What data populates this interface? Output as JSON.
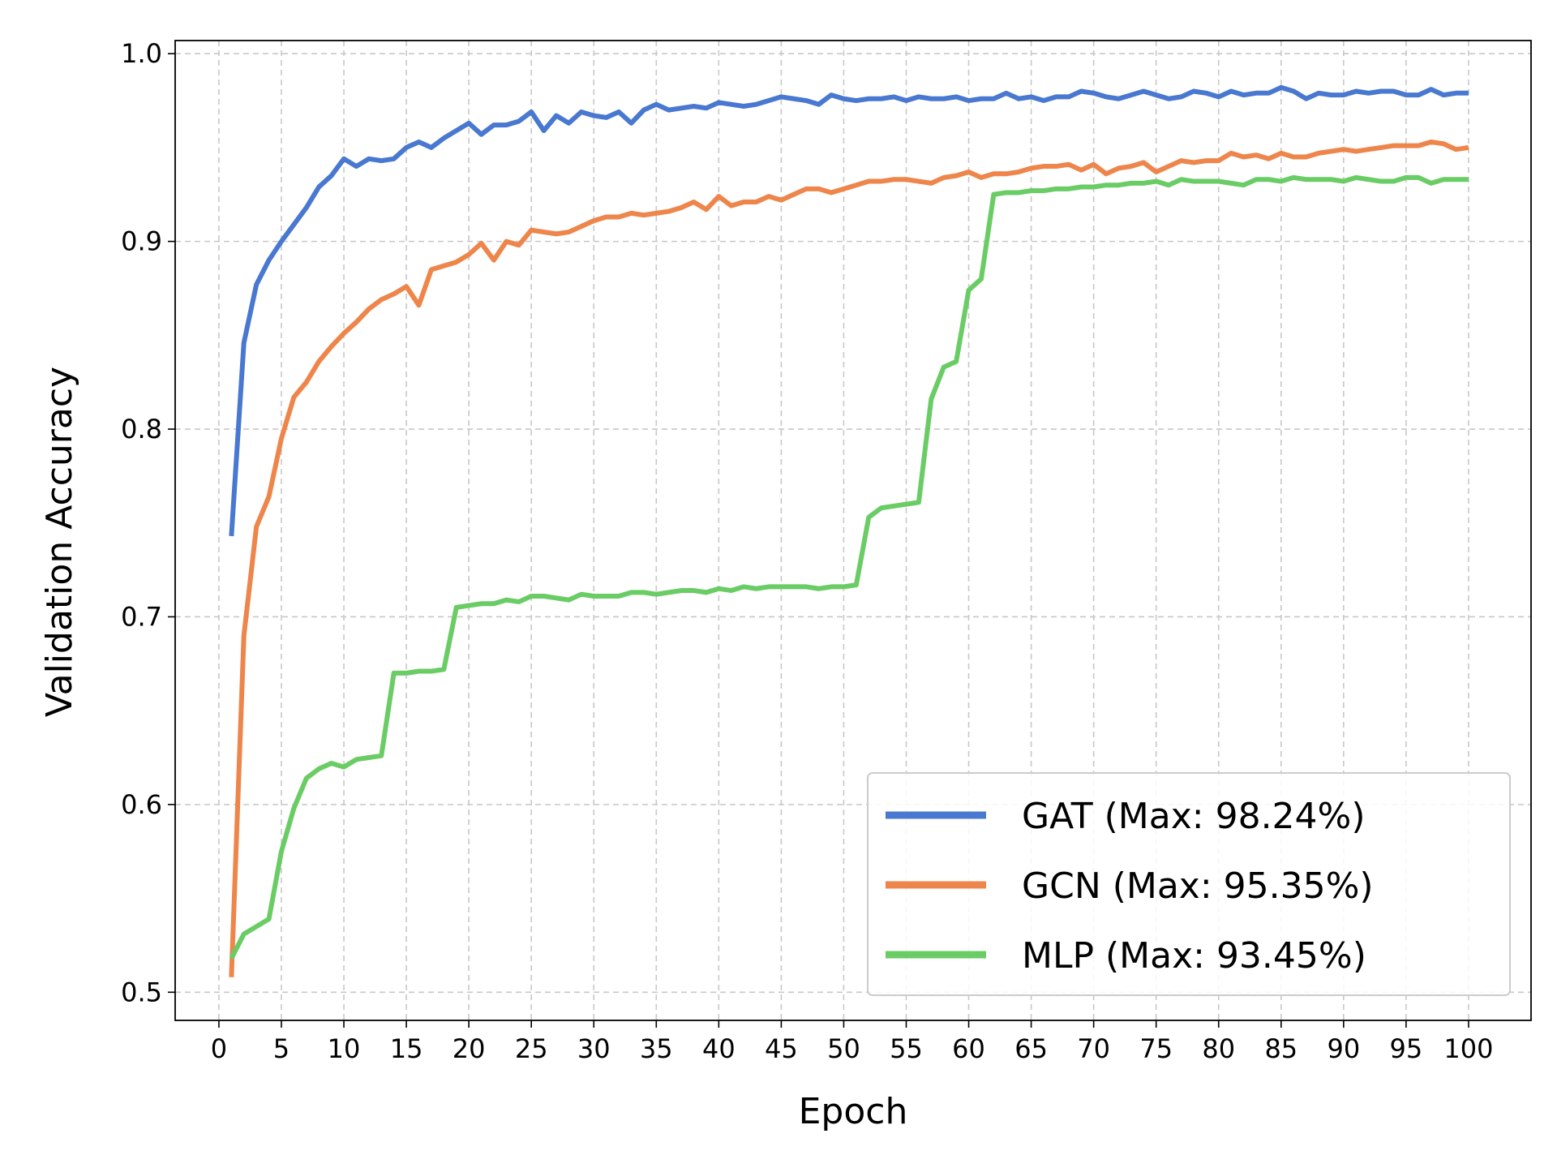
{
  "chart_data": {
    "type": "line",
    "title": "",
    "xlabel": "Epoch",
    "ylabel": "Validation Accuracy",
    "xlim": [
      -3.5,
      105
    ],
    "ylim": [
      0.485,
      1.007
    ],
    "x_ticks": [
      0,
      5,
      10,
      15,
      20,
      25,
      30,
      35,
      40,
      45,
      50,
      55,
      60,
      65,
      70,
      75,
      80,
      85,
      90,
      95,
      100
    ],
    "y_ticks": [
      0.5,
      0.6,
      0.7,
      0.8,
      0.9,
      1.0
    ],
    "y_tick_labels": [
      "0.5",
      "0.6",
      "0.7",
      "0.8",
      "0.9",
      "1.0"
    ],
    "grid": true,
    "legend_position": "lower-right",
    "x": [
      1,
      2,
      3,
      4,
      5,
      6,
      7,
      8,
      9,
      10,
      11,
      12,
      13,
      14,
      15,
      16,
      17,
      18,
      19,
      20,
      21,
      22,
      23,
      24,
      25,
      26,
      27,
      28,
      29,
      30,
      31,
      32,
      33,
      34,
      35,
      36,
      37,
      38,
      39,
      40,
      41,
      42,
      43,
      44,
      45,
      46,
      47,
      48,
      49,
      50,
      51,
      52,
      53,
      54,
      55,
      56,
      57,
      58,
      59,
      60,
      61,
      62,
      63,
      64,
      65,
      66,
      67,
      68,
      69,
      70,
      71,
      72,
      73,
      74,
      75,
      76,
      77,
      78,
      79,
      80,
      81,
      82,
      83,
      84,
      85,
      86,
      87,
      88,
      89,
      90,
      91,
      92,
      93,
      94,
      95,
      96,
      97,
      98,
      99,
      100
    ],
    "series": [
      {
        "name": "GAT (Max: 98.24%)",
        "color": "#4878d0",
        "values": [
          0.743,
          0.846,
          0.877,
          0.89,
          0.9,
          0.909,
          0.918,
          0.929,
          0.935,
          0.944,
          0.94,
          0.944,
          0.943,
          0.944,
          0.95,
          0.953,
          0.95,
          0.955,
          0.959,
          0.963,
          0.957,
          0.962,
          0.962,
          0.964,
          0.969,
          0.959,
          0.967,
          0.963,
          0.969,
          0.967,
          0.966,
          0.969,
          0.963,
          0.97,
          0.973,
          0.97,
          0.971,
          0.972,
          0.971,
          0.974,
          0.973,
          0.972,
          0.973,
          0.975,
          0.977,
          0.976,
          0.975,
          0.973,
          0.978,
          0.976,
          0.975,
          0.976,
          0.976,
          0.977,
          0.975,
          0.977,
          0.976,
          0.976,
          0.977,
          0.975,
          0.976,
          0.976,
          0.979,
          0.976,
          0.977,
          0.975,
          0.977,
          0.977,
          0.98,
          0.979,
          0.977,
          0.976,
          0.978,
          0.98,
          0.978,
          0.976,
          0.977,
          0.98,
          0.979,
          0.977,
          0.98,
          0.978,
          0.979,
          0.979,
          0.982,
          0.98,
          0.976,
          0.979,
          0.978,
          0.978,
          0.98,
          0.979,
          0.98,
          0.98,
          0.978,
          0.978,
          0.981,
          0.978,
          0.979,
          0.979
        ]
      },
      {
        "name": "GCN (Max: 95.35%)",
        "color": "#ee854a",
        "values": [
          0.508,
          0.69,
          0.748,
          0.764,
          0.795,
          0.817,
          0.825,
          0.836,
          0.844,
          0.851,
          0.857,
          0.864,
          0.869,
          0.872,
          0.876,
          0.866,
          0.885,
          0.887,
          0.889,
          0.893,
          0.899,
          0.89,
          0.9,
          0.898,
          0.906,
          0.905,
          0.904,
          0.905,
          0.908,
          0.911,
          0.913,
          0.913,
          0.915,
          0.914,
          0.915,
          0.916,
          0.918,
          0.921,
          0.917,
          0.924,
          0.919,
          0.921,
          0.921,
          0.924,
          0.922,
          0.925,
          0.928,
          0.928,
          0.926,
          0.928,
          0.93,
          0.932,
          0.932,
          0.933,
          0.933,
          0.932,
          0.931,
          0.934,
          0.935,
          0.937,
          0.934,
          0.936,
          0.936,
          0.937,
          0.939,
          0.94,
          0.94,
          0.941,
          0.938,
          0.941,
          0.936,
          0.939,
          0.94,
          0.942,
          0.937,
          0.94,
          0.943,
          0.942,
          0.943,
          0.943,
          0.947,
          0.945,
          0.946,
          0.944,
          0.947,
          0.945,
          0.945,
          0.947,
          0.948,
          0.949,
          0.948,
          0.949,
          0.95,
          0.951,
          0.951,
          0.951,
          0.953,
          0.952,
          0.949,
          0.95
        ]
      },
      {
        "name": "MLP (Max: 93.45%)",
        "color": "#6acc64",
        "values": [
          0.518,
          0.531,
          0.535,
          0.539,
          0.575,
          0.598,
          0.614,
          0.619,
          0.622,
          0.62,
          0.624,
          0.625,
          0.626,
          0.67,
          0.67,
          0.671,
          0.671,
          0.672,
          0.705,
          0.706,
          0.707,
          0.707,
          0.709,
          0.708,
          0.711,
          0.711,
          0.71,
          0.709,
          0.712,
          0.711,
          0.711,
          0.711,
          0.713,
          0.713,
          0.712,
          0.713,
          0.714,
          0.714,
          0.713,
          0.715,
          0.714,
          0.716,
          0.715,
          0.716,
          0.716,
          0.716,
          0.716,
          0.715,
          0.716,
          0.716,
          0.717,
          0.753,
          0.758,
          0.759,
          0.76,
          0.761,
          0.816,
          0.833,
          0.836,
          0.874,
          0.88,
          0.925,
          0.926,
          0.926,
          0.927,
          0.927,
          0.928,
          0.928,
          0.929,
          0.929,
          0.93,
          0.93,
          0.931,
          0.931,
          0.932,
          0.93,
          0.933,
          0.932,
          0.932,
          0.932,
          0.931,
          0.93,
          0.933,
          0.933,
          0.932,
          0.934,
          0.933,
          0.933,
          0.933,
          0.932,
          0.934,
          0.933,
          0.932,
          0.932,
          0.934,
          0.934,
          0.931,
          0.933,
          0.933,
          0.933
        ]
      }
    ]
  }
}
